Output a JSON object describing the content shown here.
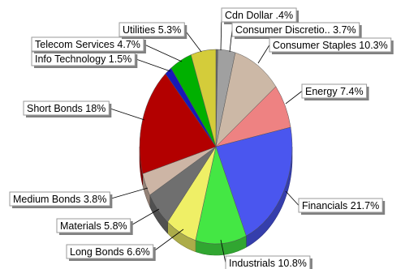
{
  "chart_data": {
    "type": "pie",
    "title": "",
    "style": "3d",
    "slices": [
      {
        "label": "Cdn Dollar .4%",
        "name": "Cdn Dollar",
        "value": 0.4,
        "color": "#6a6a6a"
      },
      {
        "label": "Consumer Discretio.. 3.7%",
        "name": "Consumer Discretionary",
        "value": 3.7,
        "color": "#a0a0a0"
      },
      {
        "label": "Consumer Staples 10.3%",
        "name": "Consumer Staples",
        "value": 10.3,
        "color": "#ccb8a6"
      },
      {
        "label": "Energy 7.4%",
        "name": "Energy",
        "value": 7.4,
        "color": "#ee8282"
      },
      {
        "label": "Financials 21.7%",
        "name": "Financials",
        "value": 21.7,
        "color": "#4a56ef"
      },
      {
        "label": "Industrials 10.8%",
        "name": "Industrials",
        "value": 10.8,
        "color": "#44e744"
      },
      {
        "label": "Long Bonds 6.6%",
        "name": "Long Bonds",
        "value": 6.6,
        "color": "#efef66"
      },
      {
        "label": "Materials 5.8%",
        "name": "Materials",
        "value": 5.8,
        "color": "#6f6f6f"
      },
      {
        "label": "Medium Bonds 3.8%",
        "name": "Medium Bonds",
        "value": 3.8,
        "color": "#cdb5a5"
      },
      {
        "label": "Short Bonds 18%",
        "name": "Short Bonds",
        "value": 18.0,
        "color": "#b30000"
      },
      {
        "label": "Info Technology 1.5%",
        "name": "Info Technology",
        "value": 1.5,
        "color": "#1818b8"
      },
      {
        "label": "Telecom Services 4.7%",
        "name": "Telecom Services",
        "value": 4.7,
        "color": "#00b000"
      },
      {
        "label": "Utilities 5.3%",
        "name": "Utilities",
        "value": 5.3,
        "color": "#d4cc3a"
      }
    ]
  }
}
